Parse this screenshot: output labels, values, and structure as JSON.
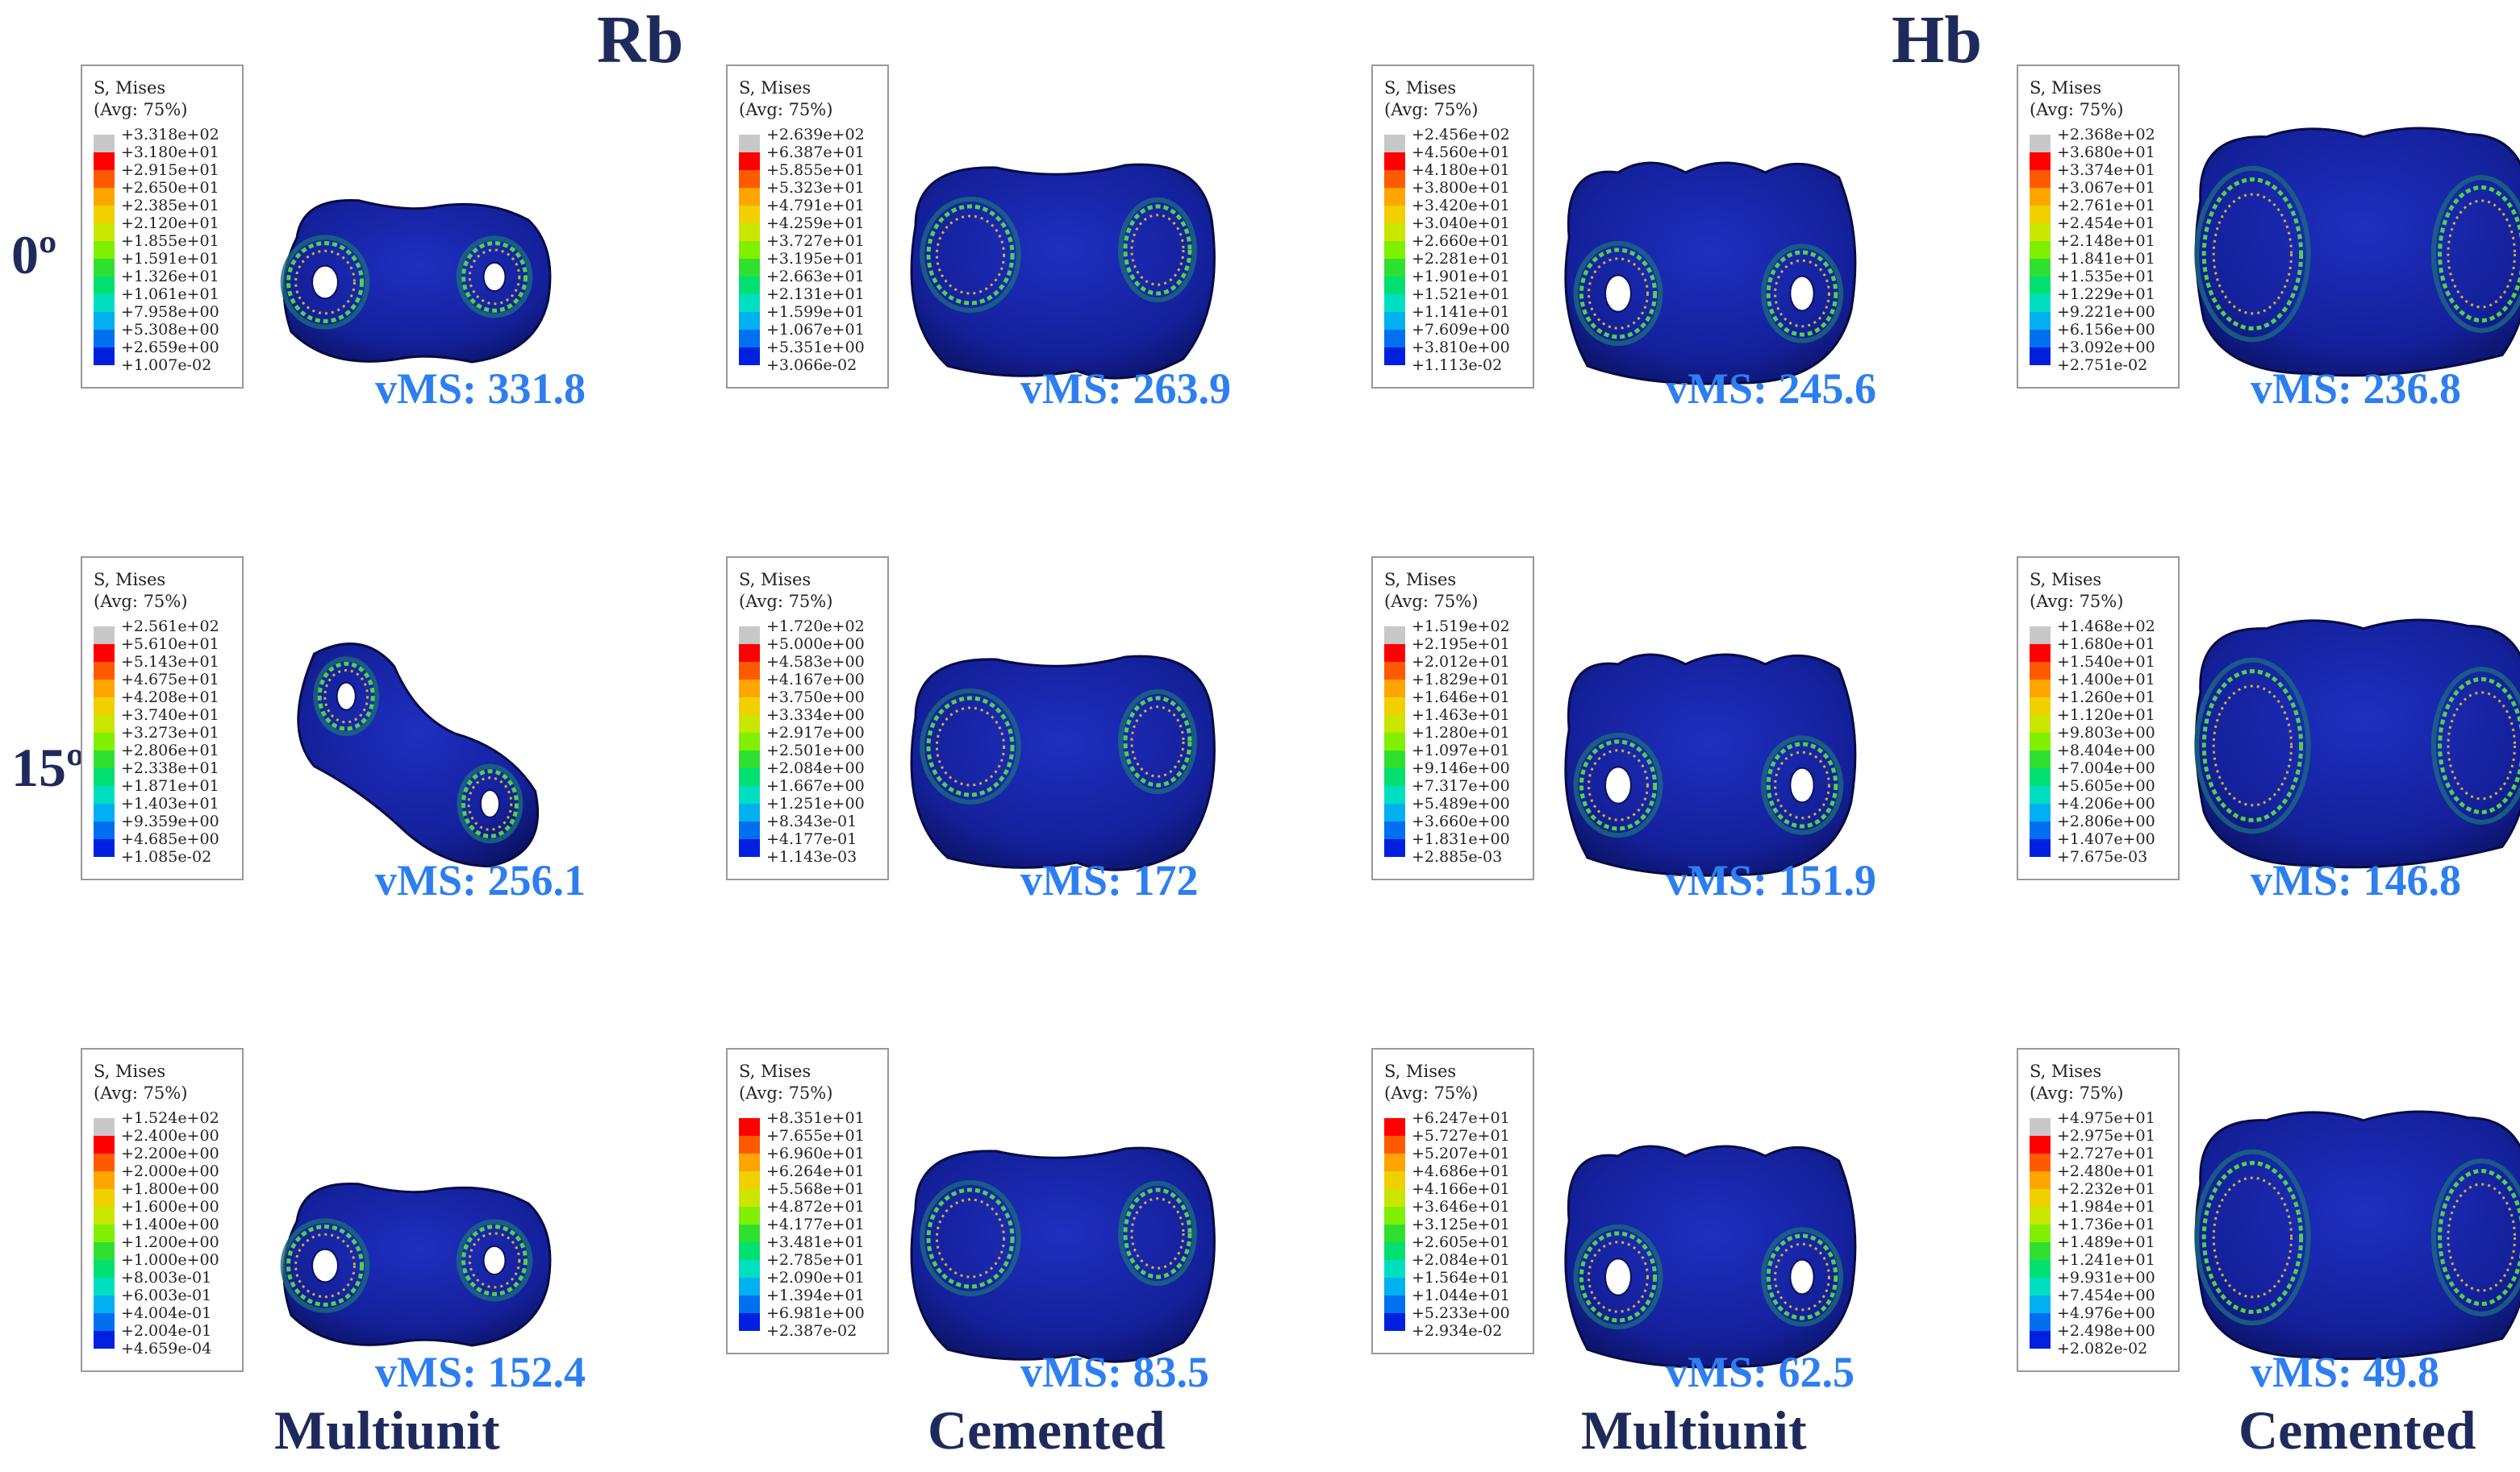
{
  "headers": {
    "rb": "Rb",
    "hb": "Hb"
  },
  "rows": [
    "0º",
    "15º",
    ""
  ],
  "columns": [
    "Multiunit",
    "Cemented",
    "Multiunit",
    "Cemented"
  ],
  "legend_title": [
    "S, Mises",
    "(Avg: 75%)"
  ],
  "palette": [
    "#c8c8c8",
    "#ff0000",
    "#ff5a00",
    "#ffa500",
    "#f0d000",
    "#c8e600",
    "#80f000",
    "#30e030",
    "#00e070",
    "#00e0c0",
    "#00b0f0",
    "#0070f0",
    "#0020e0"
  ],
  "panels": [
    {
      "id": "rb-mu-0",
      "shape": "rb",
      "legend": [
        "+3.318e+02",
        "+3.180e+01",
        "+2.915e+01",
        "+2.650e+01",
        "+2.385e+01",
        "+2.120e+01",
        "+1.855e+01",
        "+1.591e+01",
        "+1.326e+01",
        "+1.061e+01",
        "+7.958e+00",
        "+5.308e+00",
        "+2.659e+00",
        "+1.007e-02"
      ],
      "vms": "vMS: 331.8"
    },
    {
      "id": "rb-ce-0",
      "shape": "rb-cem",
      "legend": [
        "+2.639e+02",
        "+6.387e+01",
        "+5.855e+01",
        "+5.323e+01",
        "+4.791e+01",
        "+4.259e+01",
        "+3.727e+01",
        "+3.195e+01",
        "+2.663e+01",
        "+2.131e+01",
        "+1.599e+01",
        "+1.067e+01",
        "+5.351e+00",
        "+3.066e-02"
      ],
      "vms": "vMS: 263.9"
    },
    {
      "id": "hb-mu-0",
      "shape": "hb",
      "legend": [
        "+2.456e+02",
        "+4.560e+01",
        "+4.180e+01",
        "+3.800e+01",
        "+3.420e+01",
        "+3.040e+01",
        "+2.660e+01",
        "+2.281e+01",
        "+1.901e+01",
        "+1.521e+01",
        "+1.141e+01",
        "+7.609e+00",
        "+3.810e+00",
        "+1.113e-02"
      ],
      "vms": "vMS: 245.6"
    },
    {
      "id": "hb-ce-0",
      "shape": "hb-cem",
      "legend": [
        "+2.368e+02",
        "+3.680e+01",
        "+3.374e+01",
        "+3.067e+01",
        "+2.761e+01",
        "+2.454e+01",
        "+2.148e+01",
        "+1.841e+01",
        "+1.535e+01",
        "+1.229e+01",
        "+9.221e+00",
        "+6.156e+00",
        "+3.092e+00",
        "+2.751e-02"
      ],
      "vms": "vMS: 236.8"
    },
    {
      "id": "rb-mu-15",
      "shape": "rb-tilt",
      "legend": [
        "+2.561e+02",
        "+5.610e+01",
        "+5.143e+01",
        "+4.675e+01",
        "+4.208e+01",
        "+3.740e+01",
        "+3.273e+01",
        "+2.806e+01",
        "+2.338e+01",
        "+1.871e+01",
        "+1.403e+01",
        "+9.359e+00",
        "+4.685e+00",
        "+1.085e-02"
      ],
      "vms": "vMS: 256.1"
    },
    {
      "id": "rb-ce-15",
      "shape": "rb-cem",
      "legend": [
        "+1.720e+02",
        "+5.000e+00",
        "+4.583e+00",
        "+4.167e+00",
        "+3.750e+00",
        "+3.334e+00",
        "+2.917e+00",
        "+2.501e+00",
        "+2.084e+00",
        "+1.667e+00",
        "+1.251e+00",
        "+8.343e-01",
        "+4.177e-01",
        "+1.143e-03"
      ],
      "vms": "vMS: 172"
    },
    {
      "id": "hb-mu-15",
      "shape": "hb",
      "legend": [
        "+1.519e+02",
        "+2.195e+01",
        "+2.012e+01",
        "+1.829e+01",
        "+1.646e+01",
        "+1.463e+01",
        "+1.280e+01",
        "+1.097e+01",
        "+9.146e+00",
        "+7.317e+00",
        "+5.489e+00",
        "+3.660e+00",
        "+1.831e+00",
        "+2.885e-03"
      ],
      "vms": "vMS: 151.9"
    },
    {
      "id": "hb-ce-15",
      "shape": "hb-cem",
      "legend": [
        "+1.468e+02",
        "+1.680e+01",
        "+1.540e+01",
        "+1.400e+01",
        "+1.260e+01",
        "+1.120e+01",
        "+9.803e+00",
        "+8.404e+00",
        "+7.004e+00",
        "+5.605e+00",
        "+4.206e+00",
        "+2.806e+00",
        "+1.407e+00",
        "+7.675e-03"
      ],
      "vms": "vMS: 146.8"
    },
    {
      "id": "rb-mu-3",
      "shape": "rb",
      "legend": [
        "+1.524e+02",
        "+2.400e+00",
        "+2.200e+00",
        "+2.000e+00",
        "+1.800e+00",
        "+1.600e+00",
        "+1.400e+00",
        "+1.200e+00",
        "+1.000e+00",
        "+8.003e-01",
        "+6.003e-01",
        "+4.004e-01",
        "+2.004e-01",
        "+4.659e-04"
      ],
      "vms": "vMS: 152.4"
    },
    {
      "id": "rb-ce-3",
      "shape": "rb-cem",
      "legend": [
        "+8.351e+01",
        "+7.655e+01",
        "+6.960e+01",
        "+6.264e+01",
        "+5.568e+01",
        "+4.872e+01",
        "+4.177e+01",
        "+3.481e+01",
        "+2.785e+01",
        "+2.090e+01",
        "+1.394e+01",
        "+6.981e+00",
        "+2.387e-02"
      ],
      "vms": "vMS: 83.5"
    },
    {
      "id": "hb-mu-3",
      "shape": "hb",
      "legend": [
        "+6.247e+01",
        "+5.727e+01",
        "+5.207e+01",
        "+4.686e+01",
        "+4.166e+01",
        "+3.646e+01",
        "+3.125e+01",
        "+2.605e+01",
        "+2.084e+01",
        "+1.564e+01",
        "+1.044e+01",
        "+5.233e+00",
        "+2.934e-02"
      ],
      "vms": "vMS: 62.5"
    },
    {
      "id": "hb-ce-3",
      "shape": "hb-cem",
      "legend": [
        "+4.975e+01",
        "+2.975e+01",
        "+2.727e+01",
        "+2.480e+01",
        "+2.232e+01",
        "+1.984e+01",
        "+1.736e+01",
        "+1.489e+01",
        "+1.241e+01",
        "+9.931e+00",
        "+7.454e+00",
        "+4.976e+00",
        "+2.498e+00",
        "+2.082e-02"
      ],
      "vms": "vMS: 49.8"
    }
  ]
}
